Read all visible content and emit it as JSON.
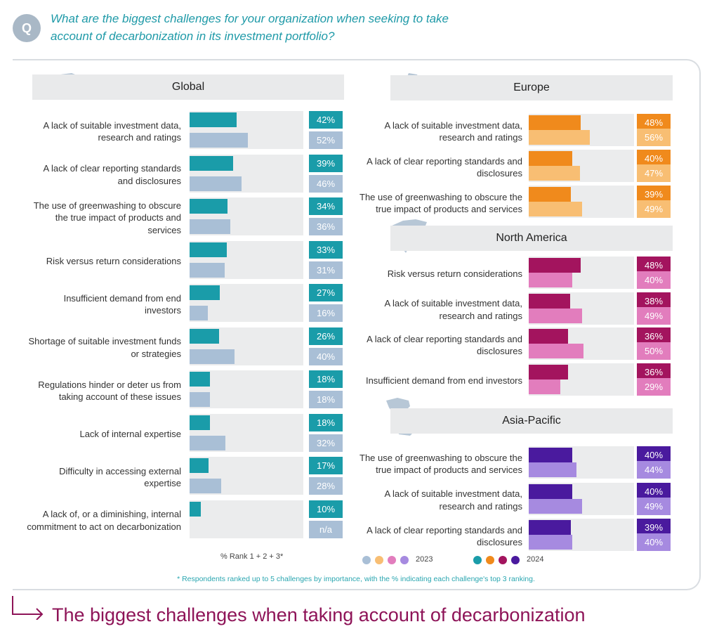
{
  "question": "What are the biggest challenges for your organization when seeking to take account of decarbonization in its investment portfolio?",
  "q_badge": "Q",
  "colors": {
    "global_2024": "#1a9ca9",
    "global_2023": "#a9bfd6",
    "europe_2024": "#f08a1c",
    "europe_2023": "#f8be73",
    "na_2024": "#a3145e",
    "na_2023": "#e27dbd",
    "ap_2024": "#4a1a9e",
    "ap_2023": "#a68ae0"
  },
  "panels": {
    "global": {
      "title": "Global",
      "rows": [
        {
          "label": "A lack of suitable investment data, research and ratings",
          "v2024": 42,
          "v2023": 52,
          "t2024": "42%",
          "t2023": "52%"
        },
        {
          "label": "A lack of clear reporting standards and disclosures",
          "v2024": 39,
          "v2023": 46,
          "t2024": "39%",
          "t2023": "46%"
        },
        {
          "label": "The use of greenwashing to obscure the true impact of products and services",
          "v2024": 34,
          "v2023": 36,
          "t2024": "34%",
          "t2023": "36%"
        },
        {
          "label": "Risk versus return considerations",
          "v2024": 33,
          "v2023": 31,
          "t2024": "33%",
          "t2023": "31%"
        },
        {
          "label": "Insufficient demand from end investors",
          "v2024": 27,
          "v2023": 16,
          "t2024": "27%",
          "t2023": "16%"
        },
        {
          "label": "Shortage of suitable investment funds or strategies",
          "v2024": 26,
          "v2023": 40,
          "t2024": "26%",
          "t2023": "40%"
        },
        {
          "label": "Regulations hinder or deter us from taking account of these issues",
          "v2024": 18,
          "v2023": 18,
          "t2024": "18%",
          "t2023": "18%"
        },
        {
          "label": "Lack of internal expertise",
          "v2024": 18,
          "v2023": 32,
          "t2024": "18%",
          "t2023": "32%"
        },
        {
          "label": "Difficulty in accessing external expertise",
          "v2024": 17,
          "v2023": 28,
          "t2024": "17%",
          "t2023": "28%"
        },
        {
          "label": "A lack of, or a diminishing, internal commitment to act on decarbonization",
          "v2024": 10,
          "v2023": null,
          "t2024": "10%",
          "t2023": "n/a"
        }
      ]
    },
    "europe": {
      "title": "Europe",
      "rows": [
        {
          "label": "A lack of suitable investment data, research and ratings",
          "v2024": 48,
          "v2023": 56,
          "t2024": "48%",
          "t2023": "56%"
        },
        {
          "label": "A lack of clear reporting standards and disclosures",
          "v2024": 40,
          "v2023": 47,
          "t2024": "40%",
          "t2023": "47%"
        },
        {
          "label": "The use of greenwashing to obscure the true impact of products and services",
          "v2024": 39,
          "v2023": 49,
          "t2024": "39%",
          "t2023": "49%"
        }
      ]
    },
    "north_america": {
      "title": "North America",
      "rows": [
        {
          "label": "Risk versus return considerations",
          "v2024": 48,
          "v2023": 40,
          "t2024": "48%",
          "t2023": "40%"
        },
        {
          "label": "A lack of suitable investment data, research and ratings",
          "v2024": 38,
          "v2023": 49,
          "t2024": "38%",
          "t2023": "49%"
        },
        {
          "label": "A lack of clear reporting standards and disclosures",
          "v2024": 36,
          "v2023": 50,
          "t2024": "36%",
          "t2023": "50%"
        },
        {
          "label": "Insufficient demand from end investors",
          "v2024": 36,
          "v2023": 29,
          "t2024": "36%",
          "t2023": "29%"
        }
      ]
    },
    "asia_pacific": {
      "title": "Asia-Pacific",
      "rows": [
        {
          "label": "The use of greenwashing to obscure the true impact of products and services",
          "v2024": 40,
          "v2023": 44,
          "t2024": "40%",
          "t2023": "44%"
        },
        {
          "label": "A lack of suitable investment data, research and ratings",
          "v2024": 40,
          "v2023": 49,
          "t2024": "40%",
          "t2023": "49%"
        },
        {
          "label": "A lack of clear reporting standards and disclosures",
          "v2024": 39,
          "v2023": 40,
          "t2024": "39%",
          "t2023": "40%"
        }
      ]
    }
  },
  "axis_note": "% Rank 1 + 2 + 3*",
  "legend": {
    "label_2023": "2023",
    "label_2024": "2024"
  },
  "footnote": "* Respondents ranked up to 5 challenges by importance, with the % indicating each challenge's top 3 ranking.",
  "bottom_title": "The biggest challenges when taking account of decarbonization",
  "chart_data": [
    {
      "type": "bar",
      "title": "Global",
      "categories": [
        "A lack of suitable investment data, research and ratings",
        "A lack of clear reporting standards and disclosures",
        "The use of greenwashing to obscure the true impact of products and services",
        "Risk versus return considerations",
        "Insufficient demand from end investors",
        "Shortage of suitable investment funds or strategies",
        "Regulations hinder or deter us from taking account of these issues",
        "Lack of internal expertise",
        "Difficulty in accessing external expertise",
        "A lack of, or a diminishing, internal commitment to act on decarbonization"
      ],
      "series": [
        {
          "name": "2024",
          "values": [
            42,
            39,
            34,
            33,
            27,
            26,
            18,
            18,
            17,
            10
          ]
        },
        {
          "name": "2023",
          "values": [
            52,
            46,
            36,
            31,
            16,
            40,
            18,
            32,
            28,
            null
          ]
        }
      ],
      "xlabel": "% Rank 1 + 2 + 3*"
    },
    {
      "type": "bar",
      "title": "Europe",
      "categories": [
        "A lack of suitable investment data, research and ratings",
        "A lack of clear reporting standards and disclosures",
        "The use of greenwashing to obscure the true impact of products and services"
      ],
      "series": [
        {
          "name": "2024",
          "values": [
            48,
            40,
            39
          ]
        },
        {
          "name": "2023",
          "values": [
            56,
            47,
            49
          ]
        }
      ]
    },
    {
      "type": "bar",
      "title": "North America",
      "categories": [
        "Risk versus return considerations",
        "A lack of suitable investment data, research and ratings",
        "A lack of clear reporting standards and disclosures",
        "Insufficient demand from end investors"
      ],
      "series": [
        {
          "name": "2024",
          "values": [
            48,
            38,
            36,
            36
          ]
        },
        {
          "name": "2023",
          "values": [
            40,
            49,
            50,
            29
          ]
        }
      ]
    },
    {
      "type": "bar",
      "title": "Asia-Pacific",
      "categories": [
        "The use of greenwashing to obscure the true impact of products and services",
        "A lack of suitable investment data, research and ratings",
        "A lack of clear reporting standards and disclosures"
      ],
      "series": [
        {
          "name": "2024",
          "values": [
            40,
            40,
            39
          ]
        },
        {
          "name": "2023",
          "values": [
            44,
            49,
            40
          ]
        }
      ]
    }
  ]
}
